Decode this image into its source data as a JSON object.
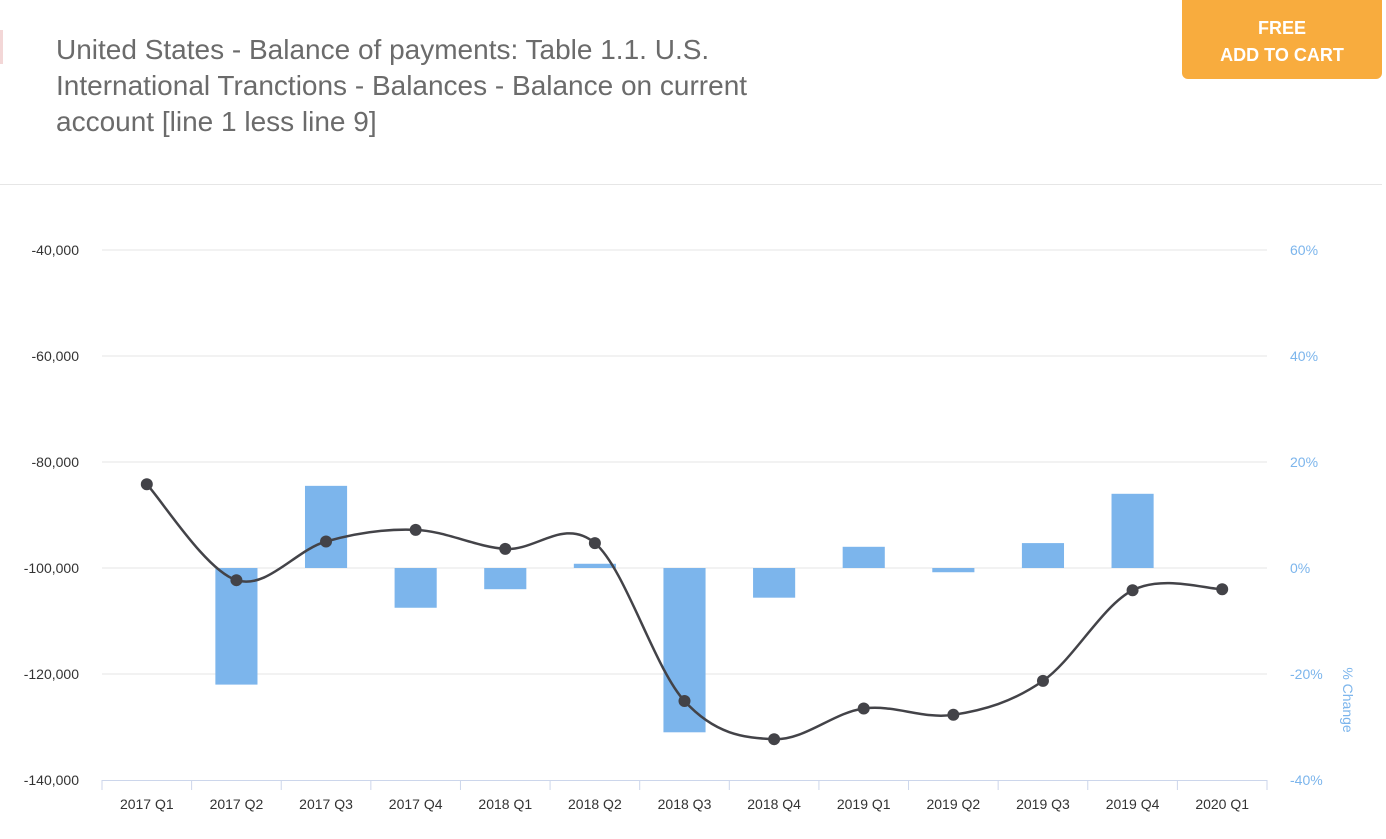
{
  "header": {
    "title": "United States - Balance of payments: Table 1.1. U.S. International Tranctions - Balances - Balance on current account [line 1 less line 9]"
  },
  "cart": {
    "line1": "FREE",
    "line2": "ADD TO CART"
  },
  "colors": {
    "bar": "#7cb5ec",
    "line": "#434348",
    "cart_button": "#f8ac3e",
    "right_axis": "#7cb5ec"
  },
  "chart_data": {
    "type": "bar",
    "categories": [
      "2017 Q1",
      "2017 Q2",
      "2017 Q3",
      "2017 Q4",
      "2018 Q1",
      "2018 Q2",
      "2018 Q3",
      "2018 Q4",
      "2019 Q1",
      "2019 Q2",
      "2019 Q3",
      "2019 Q4",
      "2020 Q1"
    ],
    "series": [
      {
        "type": "line",
        "axis": "left",
        "values": [
          -84200,
          -102300,
          -95000,
          -92800,
          -96400,
          -95300,
          -125100,
          -132300,
          -126500,
          -127700,
          -121300,
          -104200,
          -104000
        ]
      },
      {
        "type": "bar",
        "axis": "right",
        "values": [
          null,
          -22.0,
          15.5,
          -7.5,
          -4.0,
          0.8,
          -31.0,
          -5.6,
          4.0,
          -0.8,
          4.7,
          14.0,
          null
        ]
      }
    ],
    "ylim": [
      -140000,
      -40000
    ],
    "y_ticks": [
      "-140,000",
      "-120,000",
      "-100,000",
      "-80,000",
      "-60,000",
      "-40,000"
    ],
    "y2lim": [
      -40,
      60
    ],
    "y2_ticks": [
      "-40%",
      "-20%",
      "0%",
      "20%",
      "40%",
      "60%"
    ],
    "y2label": "% Change",
    "grid": true
  }
}
